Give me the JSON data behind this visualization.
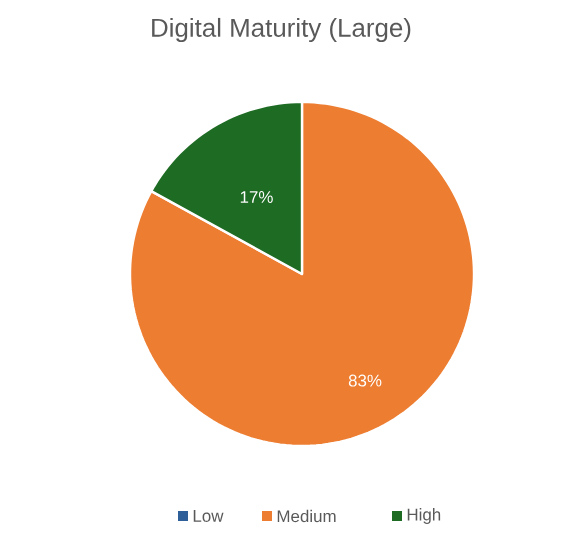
{
  "chart_data": {
    "type": "pie",
    "title": "Digital Maturity (Large)",
    "categories": [
      "Low",
      "Medium",
      "High"
    ],
    "values": [
      0,
      83,
      17
    ],
    "colors": [
      "#2f5f98",
      "#ed7d31",
      "#1e6b24"
    ],
    "value_labels": [
      null,
      "83%",
      "17%"
    ],
    "legend": "bottom"
  }
}
